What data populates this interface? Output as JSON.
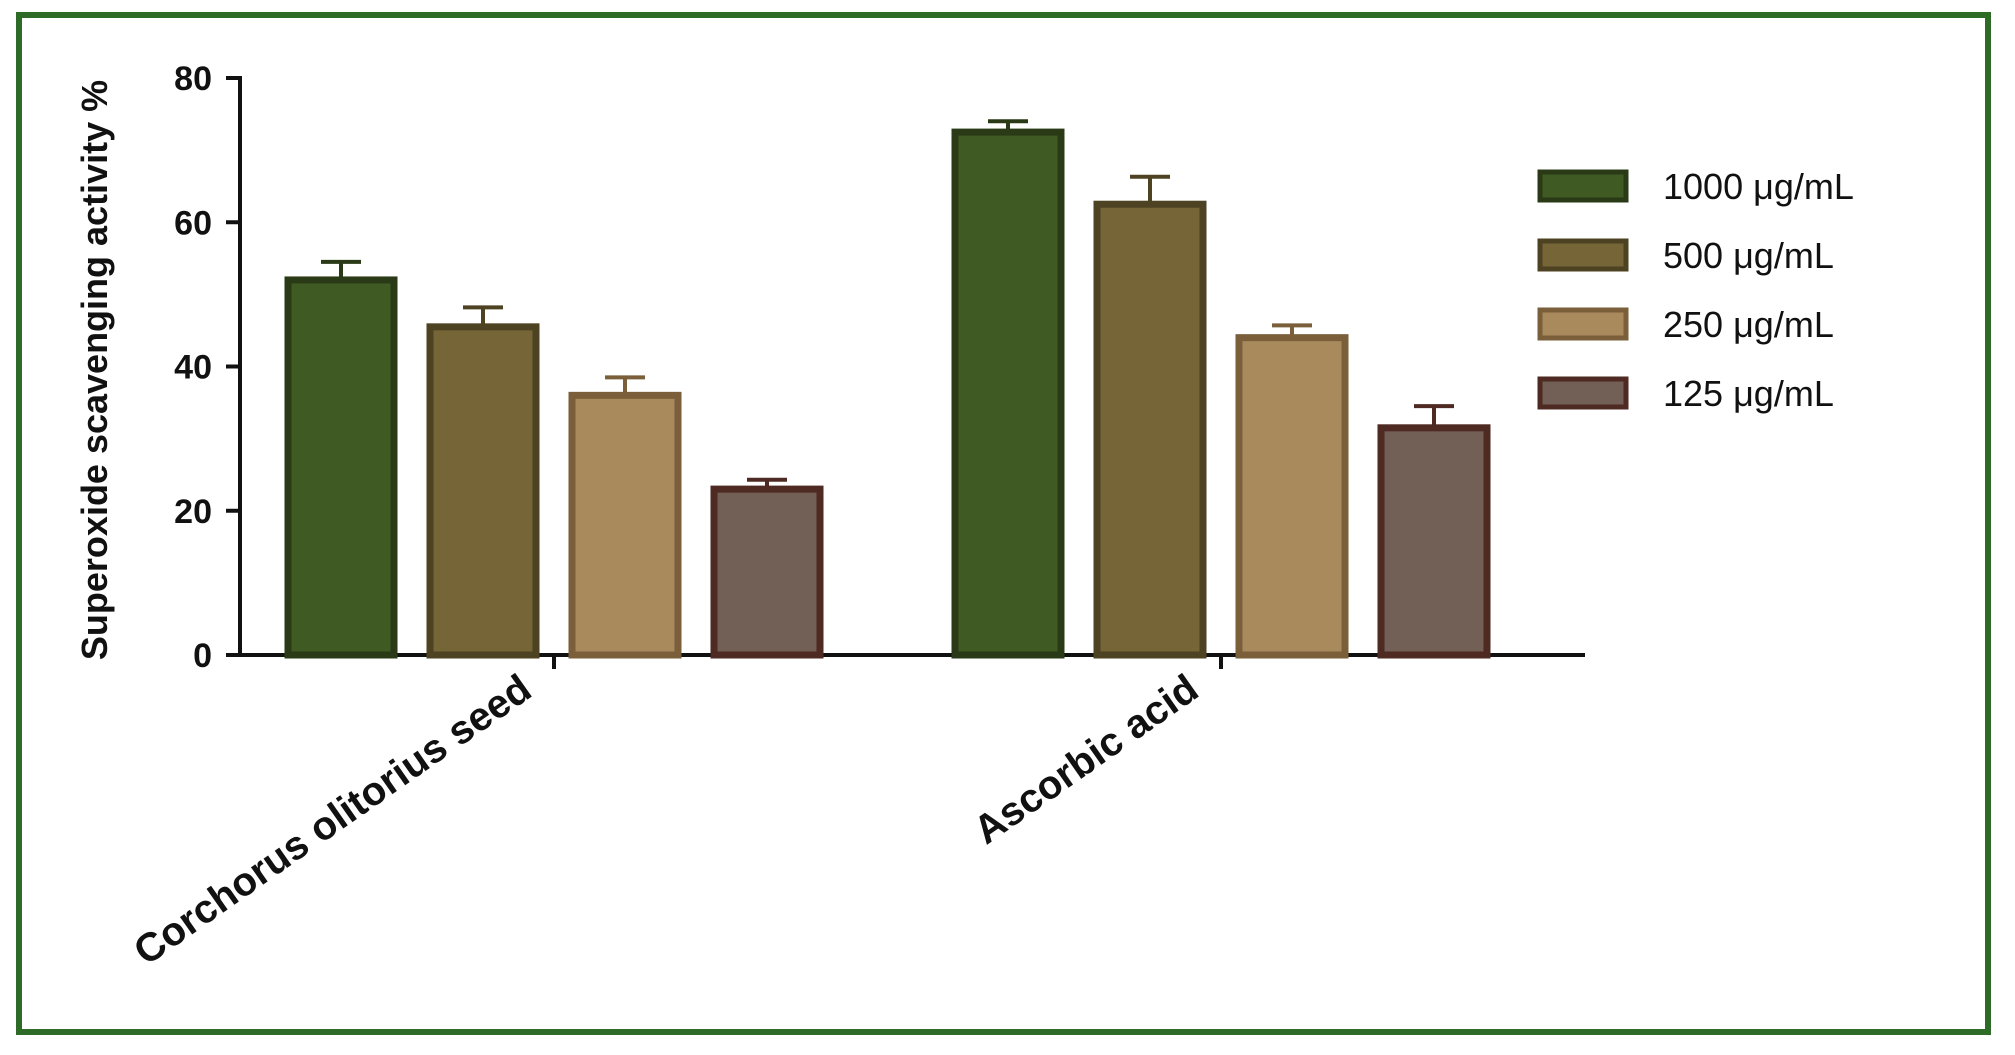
{
  "chart_data": {
    "type": "bar",
    "title": "",
    "xlabel": "",
    "ylabel": "Superoxide scavenging activity %",
    "ylim": [
      0,
      80
    ],
    "yticks": [
      0,
      20,
      40,
      60,
      80
    ],
    "categories": [
      "Corchorus olitorius seed",
      "Ascorbic acid"
    ],
    "series": [
      {
        "name": "1000 μg/mL",
        "values": [
          52,
          72.5
        ],
        "errors": [
          2.5,
          1.5
        ],
        "fill": "#3f5a23",
        "stroke": "#2a3a16"
      },
      {
        "name": "500 μg/mL",
        "values": [
          45.5,
          62.5
        ],
        "errors": [
          2.7,
          3.8
        ],
        "fill": "#756537",
        "stroke": "#4d4222"
      },
      {
        "name": "250 μg/mL",
        "values": [
          36,
          44
        ],
        "errors": [
          2.5,
          1.7
        ],
        "fill": "#a88a5d",
        "stroke": "#7a5f3a"
      },
      {
        "name": "125 μg/mL",
        "values": [
          23,
          31.5
        ],
        "errors": [
          1.3,
          3.0
        ],
        "fill": "#725f56",
        "stroke": "#4e2a22"
      }
    ],
    "grid": false,
    "legend_position": "right"
  }
}
